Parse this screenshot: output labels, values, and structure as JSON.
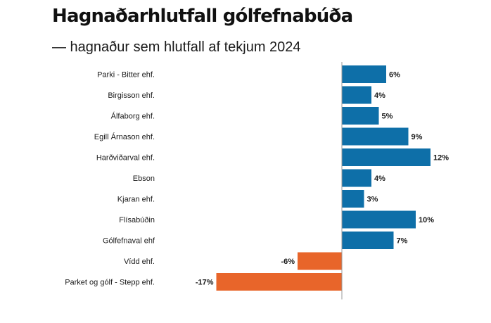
{
  "header": {
    "title": "Hagnaðarhlutfall gólfefnabúða",
    "subtitle": "— hagnaður sem hlutfall af tekjum 2024"
  },
  "colors": {
    "positive": "#0E6FA8",
    "negative": "#E8652A",
    "axis": "#9A9A9A",
    "text": "#1A1A1A"
  },
  "chart_data": {
    "type": "bar",
    "orientation": "horizontal",
    "title": "Hagnaðarhlutfall gólfefnabúða",
    "subtitle": "— hagnaður sem hlutfall af tekjum 2024",
    "xlabel": "",
    "ylabel": "",
    "unit": "%",
    "xlim": [
      -17,
      12
    ],
    "grid": false,
    "legend": "none",
    "categories": [
      "Parki - Bitter ehf.",
      "Birgisson ehf.",
      "Álfaborg ehf.",
      "Egill Árnason ehf.",
      "Harðviðarval ehf.",
      "Ebson",
      "Kjaran ehf.",
      "Flísabúðin",
      "Gólfefnaval ehf",
      "Vídd ehf.",
      "Parket og gólf - Stepp ehf."
    ],
    "values": [
      6,
      4,
      5,
      9,
      12,
      4,
      3,
      10,
      7,
      -6,
      -17
    ],
    "value_labels": [
      "6%",
      "4%",
      "5%",
      "9%",
      "12%",
      "4%",
      "3%",
      "10%",
      "7%",
      "-6%",
      "-17%"
    ]
  }
}
